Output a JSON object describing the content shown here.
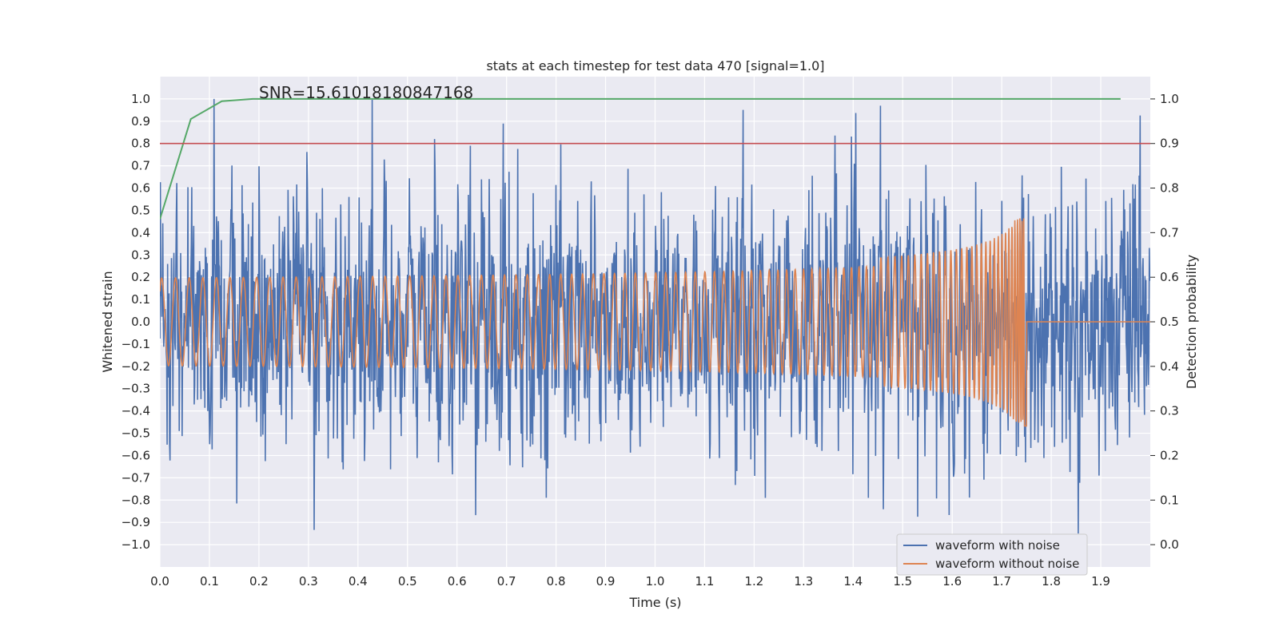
{
  "chart_data": {
    "type": "line",
    "title": "stats at each timestep for test data 470 [signal=1.0]",
    "annotation": "SNR=15.61018180847168",
    "xlabel": "Time (s)",
    "ylabel_left": "Whitened strain",
    "ylabel_right": "Detection probability",
    "xlim": [
      0.0,
      2.0
    ],
    "ylim_left": [
      -1.1,
      1.1
    ],
    "ylim_right": [
      -0.05,
      1.05
    ],
    "x_ticks": [
      "0.0",
      "0.1",
      "0.2",
      "0.3",
      "0.4",
      "0.5",
      "0.6",
      "0.7",
      "0.8",
      "0.9",
      "1.0",
      "1.1",
      "1.2",
      "1.3",
      "1.4",
      "1.5",
      "1.6",
      "1.7",
      "1.8",
      "1.9"
    ],
    "y_ticks_left": [
      "1.0",
      "0.9",
      "0.8",
      "0.7",
      "0.6",
      "0.5",
      "0.4",
      "0.3",
      "0.2",
      "0.1",
      "0.0",
      "−0.1",
      "−0.2",
      "−0.3",
      "−0.4",
      "−0.5",
      "−0.6",
      "−0.7",
      "−0.8",
      "−0.9",
      "−1.0"
    ],
    "y_ticks_right": [
      "1.0",
      "0.9",
      "0.8",
      "0.7",
      "0.6",
      "0.5",
      "0.4",
      "0.3",
      "0.2",
      "0.1",
      "0.0"
    ],
    "grid": true,
    "legend_position": "lower-right",
    "series": [
      {
        "name": "waveform with noise",
        "axis": "left",
        "color": "#4c72b0",
        "description_peaks": {
          "max": 1.0,
          "min": -0.95
        }
      },
      {
        "name": "waveform without noise",
        "axis": "left",
        "color": "#dd8452",
        "chirp": {
          "start_amplitude": 0.1,
          "end_amplitude": 0.47,
          "merger_time": 1.75,
          "start_freq_hz": 40,
          "end_freq_hz": 200
        }
      },
      {
        "axis": "right",
        "color": "#55a868",
        "x": [
          0.0,
          0.0625,
          0.125,
          0.1875,
          0.25,
          0.5,
          1.0,
          1.5,
          1.94
        ],
        "y": [
          0.73,
          0.955,
          0.995,
          1.0,
          1.0,
          1.0,
          1.0,
          1.0,
          1.0
        ]
      },
      {
        "axis": "right",
        "color": "#c44e52",
        "type": "hline",
        "y": 0.9
      }
    ]
  }
}
